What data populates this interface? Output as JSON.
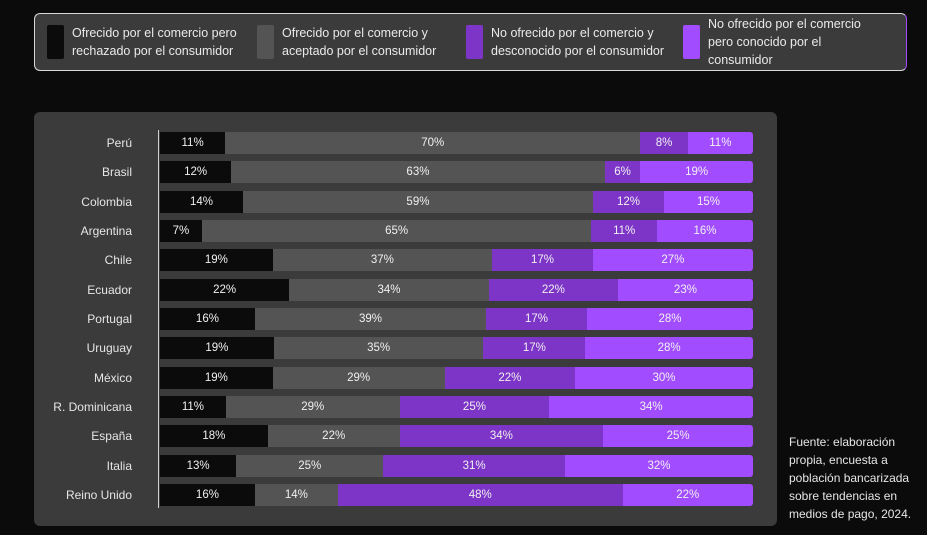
{
  "legend": [
    {
      "label": "Ofrecido por el comercio pero rechazado por el consumidor",
      "color": "#0b0b0b"
    },
    {
      "label": "Ofrecido por el comercio y aceptado por el consumidor",
      "color": "#545454"
    },
    {
      "label": "No ofrecido por el comercio y desconocido por el consumidor",
      "color": "#7d35c8"
    },
    {
      "label": "No ofrecido por el comercio pero conocido por el consumidor",
      "color": "#a24cff"
    }
  ],
  "source": "Fuente: elaboración propia, encuesta a población bancarizada sobre tendencias en medios de pago, 2024.",
  "chart_data": {
    "type": "bar",
    "orientation": "horizontal",
    "stacked": true,
    "normalized": true,
    "title": "",
    "xlabel": "",
    "ylabel": "",
    "categories": [
      "Perú",
      "Brasil",
      "Colombia",
      "Argentina",
      "Chile",
      "Ecuador",
      "Portugal",
      "Uruguay",
      "México",
      "R. Dominicana",
      "España",
      "Italia",
      "Reino Unido"
    ],
    "series": [
      {
        "name": "Ofrecido por el comercio pero rechazado por el consumidor",
        "color": "#0b0b0b",
        "values": [
          11,
          12,
          14,
          7,
          19,
          22,
          16,
          19,
          19,
          11,
          18,
          13,
          16
        ]
      },
      {
        "name": "Ofrecido por el comercio y aceptado por el consumidor",
        "color": "#545454",
        "values": [
          70,
          63,
          59,
          65,
          37,
          34,
          39,
          35,
          29,
          29,
          22,
          25,
          14
        ]
      },
      {
        "name": "No ofrecido por el comercio y desconocido por el consumidor",
        "color": "#7d35c8",
        "values": [
          8,
          6,
          12,
          11,
          17,
          22,
          17,
          17,
          22,
          25,
          34,
          31,
          48
        ]
      },
      {
        "name": "No ofrecido por el comercio pero conocido por el consumidor",
        "color": "#a24cff",
        "values": [
          11,
          19,
          15,
          16,
          27,
          23,
          28,
          28,
          30,
          34,
          25,
          32,
          22
        ]
      }
    ],
    "value_suffix": "%",
    "legend_position": "top",
    "grid": false
  }
}
